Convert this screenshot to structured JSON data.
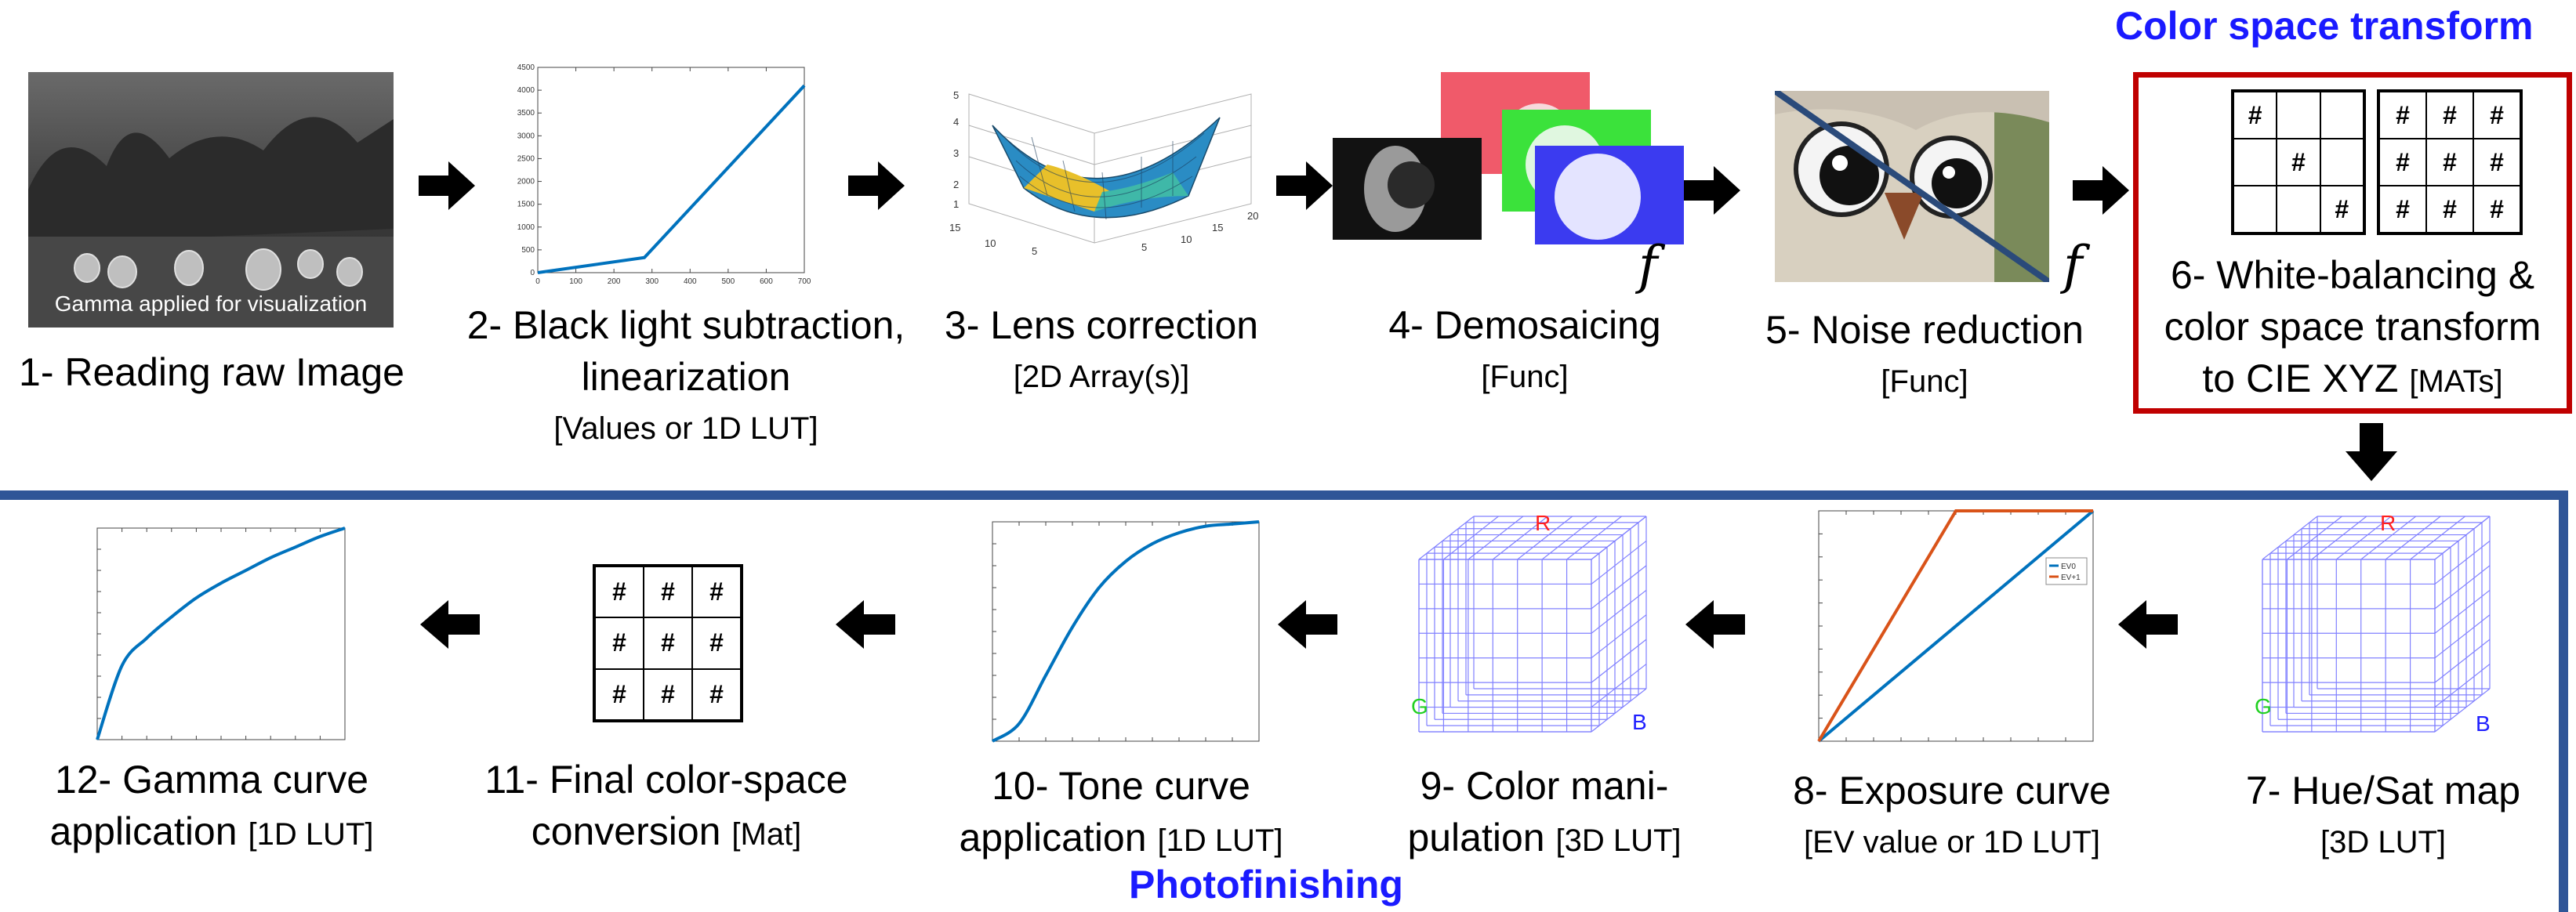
{
  "headings": {
    "color_space_transform": "Color space transform",
    "photofinishing": "Photofinishing"
  },
  "colors": {
    "heading_blue": "#1a1aff",
    "frame_red": "#c00000",
    "frame_blue": "#2f5597",
    "curve_blue": "#0072bd",
    "curve_orange": "#d95319",
    "lut_grid": "#8080ff"
  },
  "steps": [
    {
      "line1": "1- Reading raw Image",
      "caption": "Gamma applied for visualization"
    },
    {
      "line1": "2- Black light subtraction,",
      "line2": "linearization",
      "sub": "[Values or 1D LUT]"
    },
    {
      "line1": "3- Lens correction",
      "sub": "[2D Array(s)]"
    },
    {
      "line1": "4- Demosaicing",
      "sub": "[Func]",
      "func_symbol": "f"
    },
    {
      "line1": "5- Noise reduction",
      "sub": "[Func]",
      "func_symbol": "f"
    },
    {
      "line1": "6- White-balancing &",
      "line2": "color space transform",
      "line3": "to CIE XYZ",
      "sub": "[MATs]"
    },
    {
      "line1": "7- Hue/Sat map",
      "sub": "[3D LUT]"
    },
    {
      "line1": "8- Exposure curve",
      "sub": "[EV value or 1D LUT]",
      "legend": [
        "EV0",
        "EV+1"
      ]
    },
    {
      "line1": "9- Color mani-",
      "line2": "pulation",
      "sub": "[3D LUT]"
    },
    {
      "line1": "10- Tone curve",
      "line2": "application",
      "sub": "[1D LUT]"
    },
    {
      "line1": "11- Final color-space",
      "line2": "conversion",
      "sub": "[Mat]"
    },
    {
      "line1": "12- Gamma curve",
      "line2": "application",
      "sub": "[1D LUT]"
    }
  ],
  "cube_labels": {
    "r": "R",
    "g": "G",
    "b": "B"
  },
  "matrix_symbol": "#",
  "chart_data": [
    {
      "type": "line",
      "title": "",
      "x": [
        0,
        280,
        700
      ],
      "y": [
        0,
        330,
        4100
      ],
      "xlim": [
        0,
        700
      ],
      "ylim": [
        0,
        4500
      ],
      "xticks": [
        "0",
        "100",
        "200",
        "300",
        "400",
        "500",
        "600",
        "700"
      ],
      "yticks": [
        "0",
        "500",
        "1000",
        "1500",
        "2000",
        "2500",
        "3000",
        "3500",
        "4000",
        "4500"
      ]
    },
    {
      "type": "line",
      "series": [
        {
          "name": "EV0",
          "x": [
            0,
            1
          ],
          "y": [
            0,
            1
          ]
        },
        {
          "name": "EV+1",
          "x": [
            0,
            0.5,
            1
          ],
          "y": [
            0,
            1,
            1
          ]
        }
      ],
      "xlim": [
        0,
        1
      ],
      "ylim": [
        0,
        1
      ]
    },
    {
      "type": "line",
      "title": "",
      "x": [
        0,
        0.1,
        0.2,
        0.3,
        0.4,
        0.5,
        0.6,
        0.7,
        0.8,
        0.9,
        1
      ],
      "y": [
        0,
        0.08,
        0.3,
        0.52,
        0.7,
        0.82,
        0.9,
        0.95,
        0.98,
        0.99,
        1
      ],
      "xlim": [
        0,
        1
      ],
      "ylim": [
        0,
        1
      ]
    },
    {
      "type": "line",
      "title": "",
      "x": [
        0,
        0.1,
        0.2,
        0.3,
        0.4,
        0.5,
        0.6,
        0.7,
        0.8,
        0.9,
        1
      ],
      "y": [
        0,
        0.35,
        0.48,
        0.58,
        0.67,
        0.74,
        0.8,
        0.86,
        0.91,
        0.96,
        1
      ],
      "xlim": [
        0,
        1
      ],
      "ylim": [
        0,
        1
      ]
    }
  ]
}
